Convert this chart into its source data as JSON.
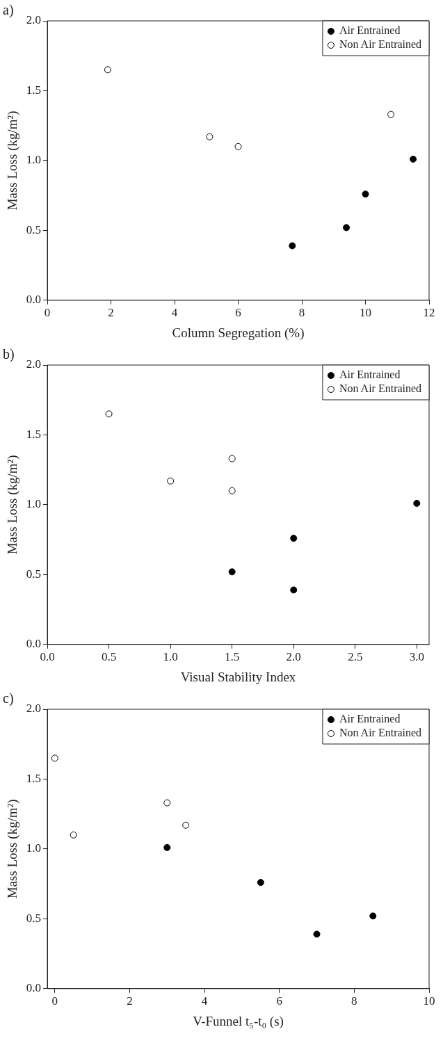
{
  "chart_data": [
    {
      "type": "scatter",
      "title": "a)",
      "xlabel": "Column Segregation (%)",
      "ylabel": "Mass Loss (kg/m²)",
      "xlim": [
        0,
        12
      ],
      "xticks": [
        0,
        2,
        4,
        6,
        8,
        10,
        12
      ],
      "ylim": [
        0,
        2
      ],
      "yticks": [
        {
          "value": 0,
          "label": "0.0"
        },
        {
          "value": 0.5,
          "label": "0.5"
        },
        {
          "value": 1,
          "label": "1.0"
        },
        {
          "value": 1.5,
          "label": "1.5"
        },
        {
          "value": 2,
          "label": "2.0"
        }
      ],
      "grid": false,
      "legend": "top right",
      "marker": "circle",
      "series": [
        {
          "name": "Air Entrained",
          "color": "#000000",
          "x": [
            7.7,
            9.4,
            10.0,
            11.5
          ],
          "values": [
            0.39,
            0.52,
            0.76,
            1.01
          ]
        },
        {
          "name": "Non Air Entrained",
          "color": "#ffffff",
          "x": [
            1.9,
            5.1,
            6.0,
            10.8
          ],
          "values": [
            1.65,
            1.17,
            1.1,
            1.33
          ]
        }
      ]
    },
    {
      "type": "scatter",
      "title": "b)",
      "xlabel": "Visual Stability Index",
      "ylabel": "Mass Loss (kg/m²)",
      "xlim": [
        0,
        3.1
      ],
      "xticks": [
        {
          "value": 0,
          "label": "0.0"
        },
        {
          "value": 0.5,
          "label": "0.5"
        },
        {
          "value": 1,
          "label": "1.0"
        },
        {
          "value": 1.5,
          "label": "1.5"
        },
        {
          "value": 2,
          "label": "2.0"
        },
        {
          "value": 2.5,
          "label": "2.5"
        },
        {
          "value": 3,
          "label": "3.0"
        }
      ],
      "ylim": [
        0,
        2
      ],
      "yticks": [
        {
          "value": 0,
          "label": "0.0"
        },
        {
          "value": 0.5,
          "label": "0.5"
        },
        {
          "value": 1,
          "label": "1.0"
        },
        {
          "value": 1.5,
          "label": "1.5"
        },
        {
          "value": 2,
          "label": "2.0"
        }
      ],
      "grid": false,
      "legend": "top right",
      "marker": "circle",
      "series": [
        {
          "name": "Air Entrained",
          "color": "#000000",
          "x": [
            1.5,
            2.0,
            2.0,
            3.0
          ],
          "values": [
            0.52,
            0.76,
            0.39,
            1.01
          ]
        },
        {
          "name": "Non Air Entrained",
          "color": "#ffffff",
          "x": [
            0.5,
            1.0,
            1.5,
            1.5
          ],
          "values": [
            1.65,
            1.17,
            1.33,
            1.1
          ]
        }
      ]
    },
    {
      "type": "scatter",
      "title": "c)",
      "xlabel": "V-Funnel t₅-t₀ (s)",
      "ylabel": "Mass Loss (kg/m²)",
      "xlim": [
        -0.2,
        10
      ],
      "xticks": [
        0,
        2,
        4,
        6,
        8,
        10
      ],
      "ylim": [
        0,
        2
      ],
      "yticks": [
        {
          "value": 0,
          "label": "0.0"
        },
        {
          "value": 0.5,
          "label": "0.5"
        },
        {
          "value": 1,
          "label": "1.0"
        },
        {
          "value": 1.5,
          "label": "1.5"
        },
        {
          "value": 2,
          "label": "2.0"
        }
      ],
      "grid": false,
      "legend": "top right",
      "marker": "circle",
      "series": [
        {
          "name": "Air Entrained",
          "color": "#000000",
          "x": [
            3.0,
            5.5,
            7.0,
            8.5
          ],
          "values": [
            1.01,
            0.76,
            0.39,
            0.52
          ]
        },
        {
          "name": "Non Air Entrained",
          "color": "#ffffff",
          "x": [
            0.0,
            0.5,
            3.0,
            3.5
          ],
          "values": [
            1.65,
            1.1,
            1.33,
            1.17
          ]
        }
      ]
    }
  ]
}
